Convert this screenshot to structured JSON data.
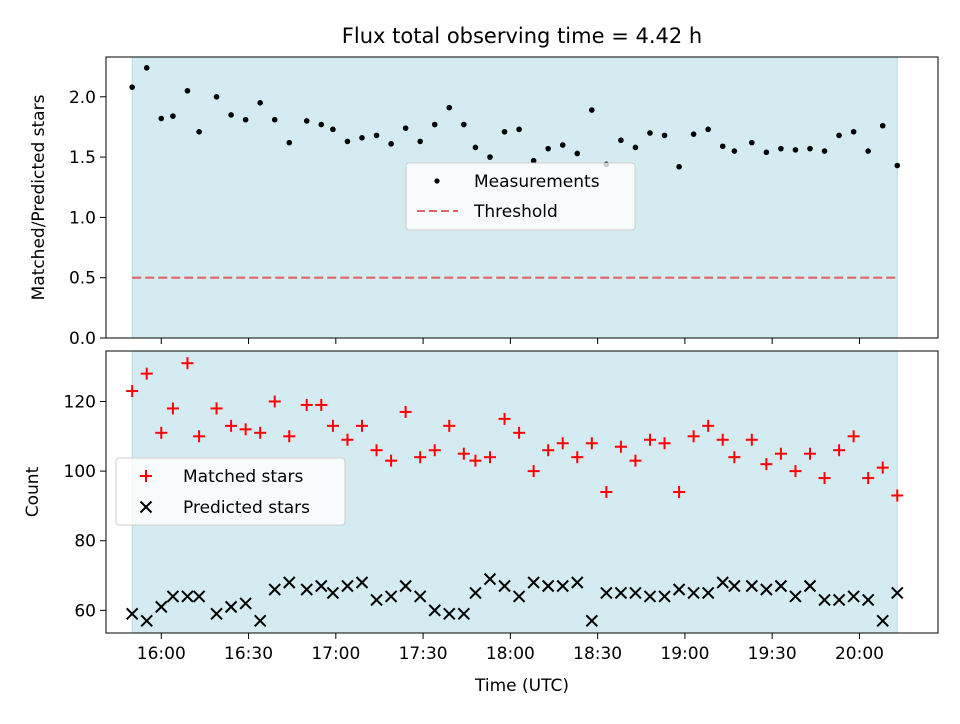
{
  "figure": {
    "title": "Flux total observing time = 4.42 h",
    "shaded_color": "#d4ebf1",
    "shaded_edge": "#b8dbe5"
  },
  "chart_data": [
    {
      "type": "scatter",
      "ylabel": "Matched/Predicted stars",
      "xlabel": "",
      "ylim": [
        0,
        2.33
      ],
      "yticks": [
        "0.0",
        "0.5",
        "1.0",
        "1.5",
        "2.0"
      ],
      "ytick_values": [
        0,
        0.5,
        1.0,
        1.5,
        2.0
      ],
      "legend": {
        "position": "center",
        "entries": [
          "Measurements",
          "Threshold"
        ]
      },
      "threshold": {
        "name": "Threshold",
        "value": 0.5,
        "color": "#e06666"
      },
      "series": [
        {
          "name": "Measurements",
          "color": "#000000",
          "x": [
            "15:50",
            "15:55",
            "16:00",
            "16:04",
            "16:09",
            "16:13",
            "16:19",
            "16:24",
            "16:29",
            "16:34",
            "16:39",
            "16:44",
            "16:50",
            "16:55",
            "16:59",
            "17:04",
            "17:09",
            "17:14",
            "17:19",
            "17:24",
            "17:29",
            "17:34",
            "17:39",
            "17:44",
            "17:48",
            "17:53",
            "17:58",
            "18:03",
            "18:08",
            "18:13",
            "18:18",
            "18:23",
            "18:28",
            "18:33",
            "18:38",
            "18:43",
            "18:48",
            "18:53",
            "18:58",
            "19:03",
            "19:08",
            "19:13",
            "19:17",
            "19:23",
            "19:28",
            "19:33",
            "19:38",
            "19:43",
            "19:48",
            "19:53",
            "19:58",
            "20:03",
            "20:08",
            "20:13"
          ],
          "y": [
            2.08,
            2.24,
            1.82,
            1.84,
            2.05,
            1.71,
            2.0,
            1.85,
            1.81,
            1.95,
            1.81,
            1.62,
            1.8,
            1.77,
            1.73,
            1.63,
            1.66,
            1.68,
            1.61,
            1.74,
            1.63,
            1.77,
            1.91,
            1.77,
            1.58,
            1.5,
            1.71,
            1.73,
            1.47,
            1.57,
            1.6,
            1.53,
            1.89,
            1.44,
            1.64,
            1.58,
            1.7,
            1.68,
            1.42,
            1.69,
            1.73,
            1.59,
            1.55,
            1.62,
            1.54,
            1.57,
            1.56,
            1.57,
            1.55,
            1.68,
            1.71,
            1.55,
            1.76,
            1.43
          ]
        }
      ]
    },
    {
      "type": "scatter",
      "ylabel": "Count",
      "xlabel": "Time (UTC)",
      "ylim": [
        53.5,
        134.5
      ],
      "yticks": [
        "60",
        "80",
        "100",
        "120"
      ],
      "ytick_values": [
        60,
        80,
        100,
        120
      ],
      "xlim": [
        "15:41",
        "20:27"
      ],
      "xticks": [
        "16:00",
        "16:30",
        "17:00",
        "17:30",
        "18:00",
        "18:30",
        "19:00",
        "19:30",
        "20:00"
      ],
      "legend": {
        "position": "center-left",
        "entries": [
          "Matched stars",
          "Predicted stars"
        ]
      },
      "series": [
        {
          "name": "Matched stars",
          "marker": "plus",
          "color": "#ff0000",
          "x": [
            "15:50",
            "15:55",
            "16:00",
            "16:04",
            "16:09",
            "16:13",
            "16:19",
            "16:24",
            "16:29",
            "16:34",
            "16:39",
            "16:44",
            "16:50",
            "16:55",
            "16:59",
            "17:04",
            "17:09",
            "17:14",
            "17:19",
            "17:24",
            "17:29",
            "17:34",
            "17:39",
            "17:44",
            "17:48",
            "17:53",
            "17:58",
            "18:03",
            "18:08",
            "18:13",
            "18:18",
            "18:23",
            "18:28",
            "18:33",
            "18:38",
            "18:43",
            "18:48",
            "18:53",
            "18:58",
            "19:03",
            "19:08",
            "19:13",
            "19:17",
            "19:23",
            "19:28",
            "19:33",
            "19:38",
            "19:43",
            "19:48",
            "19:53",
            "19:58",
            "20:03",
            "20:08",
            "20:13"
          ],
          "y": [
            123,
            128,
            111,
            118,
            131,
            110,
            118,
            113,
            112,
            111,
            120,
            110,
            119,
            119,
            113,
            109,
            113,
            106,
            103,
            117,
            104,
            106,
            113,
            105,
            103,
            104,
            115,
            111,
            100,
            106,
            108,
            104,
            108,
            94,
            107,
            103,
            109,
            108,
            94,
            110,
            113,
            109,
            104,
            109,
            102,
            105,
            100,
            105,
            98,
            106,
            110,
            98,
            101,
            93
          ]
        },
        {
          "name": "Predicted stars",
          "marker": "x",
          "color": "#000000",
          "x": [
            "15:50",
            "15:55",
            "16:00",
            "16:04",
            "16:09",
            "16:13",
            "16:19",
            "16:24",
            "16:29",
            "16:34",
            "16:39",
            "16:44",
            "16:50",
            "16:55",
            "16:59",
            "17:04",
            "17:09",
            "17:14",
            "17:19",
            "17:24",
            "17:29",
            "17:34",
            "17:39",
            "17:44",
            "17:48",
            "17:53",
            "17:58",
            "18:03",
            "18:08",
            "18:13",
            "18:18",
            "18:23",
            "18:28",
            "18:33",
            "18:38",
            "18:43",
            "18:48",
            "18:53",
            "18:58",
            "19:03",
            "19:08",
            "19:13",
            "19:17",
            "19:23",
            "19:28",
            "19:33",
            "19:38",
            "19:43",
            "19:48",
            "19:53",
            "19:58",
            "20:03",
            "20:08",
            "20:13"
          ],
          "y": [
            59,
            57,
            61,
            64,
            64,
            64,
            59,
            61,
            62,
            57,
            66,
            68,
            66,
            67,
            65,
            67,
            68,
            63,
            64,
            67,
            64,
            60,
            59,
            59,
            65,
            69,
            67,
            64,
            68,
            67,
            67,
            68,
            57,
            65,
            65,
            65,
            64,
            64,
            66,
            65,
            65,
            68,
            67,
            67,
            66,
            67,
            64,
            67,
            63,
            63,
            64,
            63,
            57,
            65
          ]
        }
      ],
      "shaded_span": [
        "15:50",
        "20:13"
      ]
    }
  ]
}
